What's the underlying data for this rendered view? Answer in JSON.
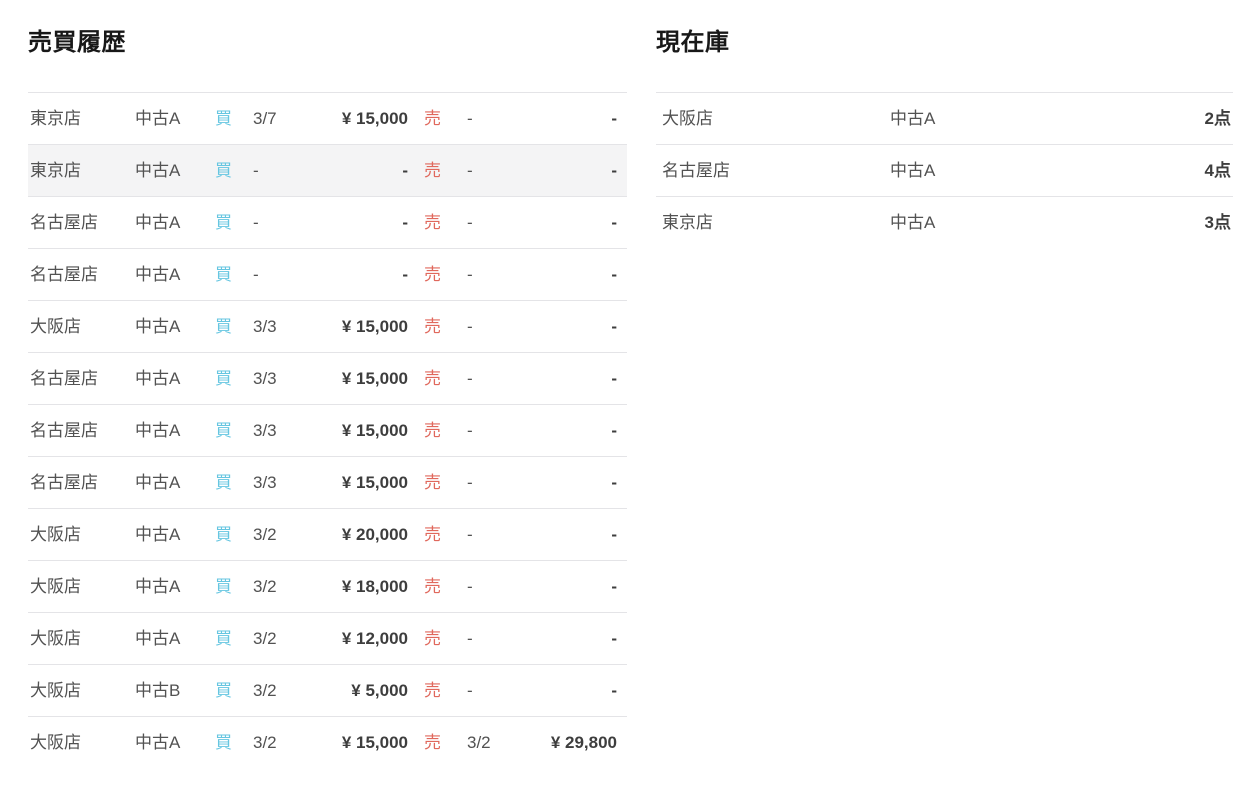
{
  "colors": {
    "buy_label": "#66c6e1",
    "sell_label": "#e0685c",
    "row_highlight": "#f4f4f5",
    "border": "#e4e4e7",
    "text": "#525252",
    "strong_text": "#3e3e3e",
    "title_text": "#181818"
  },
  "history": {
    "title": "売買履歴",
    "buy_label": "買",
    "sell_label": "売",
    "rows": [
      {
        "store": "東京店",
        "item": "中古A",
        "buy_date": "3/7",
        "buy_price": "¥ 15,000",
        "sell_date": "-",
        "sell_price": "-",
        "highlight": false
      },
      {
        "store": "東京店",
        "item": "中古A",
        "buy_date": "-",
        "buy_price": "-",
        "sell_date": "-",
        "sell_price": "-",
        "highlight": true
      },
      {
        "store": "名古屋店",
        "item": "中古A",
        "buy_date": "-",
        "buy_price": "-",
        "sell_date": "-",
        "sell_price": "-",
        "highlight": false
      },
      {
        "store": "名古屋店",
        "item": "中古A",
        "buy_date": "-",
        "buy_price": "-",
        "sell_date": "-",
        "sell_price": "-",
        "highlight": false
      },
      {
        "store": "大阪店",
        "item": "中古A",
        "buy_date": "3/3",
        "buy_price": "¥ 15,000",
        "sell_date": "-",
        "sell_price": "-",
        "highlight": false
      },
      {
        "store": "名古屋店",
        "item": "中古A",
        "buy_date": "3/3",
        "buy_price": "¥ 15,000",
        "sell_date": "-",
        "sell_price": "-",
        "highlight": false
      },
      {
        "store": "名古屋店",
        "item": "中古A",
        "buy_date": "3/3",
        "buy_price": "¥ 15,000",
        "sell_date": "-",
        "sell_price": "-",
        "highlight": false
      },
      {
        "store": "名古屋店",
        "item": "中古A",
        "buy_date": "3/3",
        "buy_price": "¥ 15,000",
        "sell_date": "-",
        "sell_price": "-",
        "highlight": false
      },
      {
        "store": "大阪店",
        "item": "中古A",
        "buy_date": "3/2",
        "buy_price": "¥ 20,000",
        "sell_date": "-",
        "sell_price": "-",
        "highlight": false
      },
      {
        "store": "大阪店",
        "item": "中古A",
        "buy_date": "3/2",
        "buy_price": "¥ 18,000",
        "sell_date": "-",
        "sell_price": "-",
        "highlight": false
      },
      {
        "store": "大阪店",
        "item": "中古A",
        "buy_date": "3/2",
        "buy_price": "¥ 12,000",
        "sell_date": "-",
        "sell_price": "-",
        "highlight": false
      },
      {
        "store": "大阪店",
        "item": "中古B",
        "buy_date": "3/2",
        "buy_price": "¥ 5,000",
        "sell_date": "-",
        "sell_price": "-",
        "highlight": false
      },
      {
        "store": "大阪店",
        "item": "中古A",
        "buy_date": "3/2",
        "buy_price": "¥ 15,000",
        "sell_date": "3/2",
        "sell_price": "¥ 29,800",
        "highlight": false
      }
    ]
  },
  "inventory": {
    "title": "現在庫",
    "rows": [
      {
        "store": "大阪店",
        "item": "中古A",
        "qty": "2点"
      },
      {
        "store": "名古屋店",
        "item": "中古A",
        "qty": "4点"
      },
      {
        "store": "東京店",
        "item": "中古A",
        "qty": "3点"
      }
    ]
  }
}
